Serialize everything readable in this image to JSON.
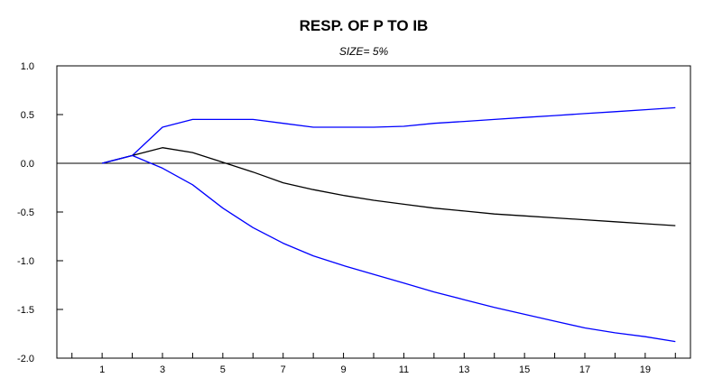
{
  "chart_data": {
    "type": "line",
    "title": "RESP. OF P TO IB",
    "subtitle": "SIZE= 5%",
    "xlabel": "",
    "ylabel": "",
    "x": [
      1,
      2,
      3,
      4,
      5,
      6,
      7,
      8,
      9,
      10,
      11,
      12,
      13,
      14,
      15,
      16,
      17,
      18,
      19,
      20
    ],
    "xticks": [
      "1",
      "3",
      "5",
      "7",
      "9",
      "11",
      "13",
      "15",
      "17",
      "19"
    ],
    "xtick_values": [
      1,
      3,
      5,
      7,
      9,
      11,
      13,
      15,
      17,
      19
    ],
    "xlim": [
      -0.5,
      20.5
    ],
    "ylim": [
      -2.0,
      1.0
    ],
    "yticks": [
      "1.0",
      "0.5",
      "0.0",
      "-0.5",
      "-1.0",
      "-1.5",
      "-2.0"
    ],
    "ytick_values": [
      1.0,
      0.5,
      0.0,
      -0.5,
      -1.0,
      -1.5,
      -2.0
    ],
    "zero_line": true,
    "grid": false,
    "series": [
      {
        "color": "#0000ff",
        "values": [
          0.0,
          0.08,
          0.37,
          0.45,
          0.45,
          0.45,
          0.41,
          0.37,
          0.37,
          0.37,
          0.38,
          0.41,
          0.43,
          0.45,
          0.47,
          0.49,
          0.51,
          0.53,
          0.55,
          0.57
        ]
      },
      {
        "color": "#000000",
        "values": [
          0.0,
          0.08,
          0.16,
          0.11,
          0.01,
          -0.09,
          -0.2,
          -0.27,
          -0.33,
          -0.38,
          -0.42,
          -0.46,
          -0.49,
          -0.52,
          -0.54,
          -0.56,
          -0.58,
          -0.6,
          -0.62,
          -0.64
        ]
      },
      {
        "color": "#0000ff",
        "values": [
          0.0,
          0.08,
          -0.05,
          -0.22,
          -0.46,
          -0.66,
          -0.82,
          -0.95,
          -1.05,
          -1.14,
          -1.23,
          -1.32,
          -1.4,
          -1.48,
          -1.55,
          -1.62,
          -1.69,
          -1.74,
          -1.78,
          -1.83
        ]
      }
    ]
  }
}
